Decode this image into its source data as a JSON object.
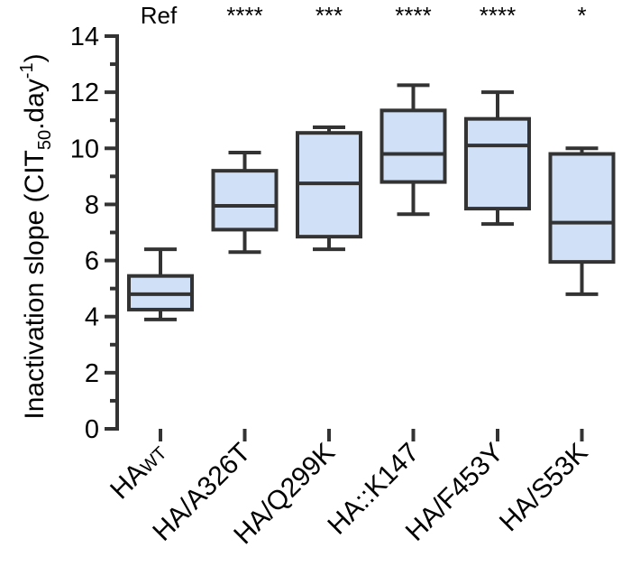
{
  "chart_data": {
    "type": "box",
    "title": "",
    "xlabel": "",
    "ylabel": {
      "main": "Inactivation slope (CIT",
      "sub": "50",
      "mid": ".day",
      "sup": "-1",
      "end": ")"
    },
    "ylim": [
      0,
      14
    ],
    "yticks": [
      0,
      2,
      4,
      6,
      8,
      10,
      12,
      14
    ],
    "colors": {
      "box_fill": "#cfe0f7",
      "stroke": "#333333"
    },
    "categories": [
      {
        "label": "HA",
        "sub": "WT",
        "significance": "Ref",
        "whisker_min": 3.9,
        "q1": 4.25,
        "median": 4.8,
        "q3": 5.45,
        "whisker_max": 6.4
      },
      {
        "label": "HA/A326T",
        "significance": "****",
        "whisker_min": 6.3,
        "q1": 7.1,
        "median": 7.95,
        "q3": 9.2,
        "whisker_max": 9.85
      },
      {
        "label": "HA/Q299K",
        "significance": "***",
        "whisker_min": 6.4,
        "q1": 6.85,
        "median": 8.75,
        "q3": 10.55,
        "whisker_max": 10.75
      },
      {
        "label": "HA::K147",
        "significance": "****",
        "whisker_min": 7.65,
        "q1": 8.8,
        "median": 9.8,
        "q3": 11.35,
        "whisker_max": 12.25
      },
      {
        "label": "HA/F453Y",
        "significance": "****",
        "whisker_min": 7.3,
        "q1": 7.85,
        "median": 10.1,
        "q3": 11.05,
        "whisker_max": 12.0
      },
      {
        "label": "HA/S53K",
        "significance": "*",
        "whisker_min": 4.8,
        "q1": 5.95,
        "median": 7.35,
        "q3": 9.8,
        "whisker_max": 10.0
      }
    ]
  }
}
